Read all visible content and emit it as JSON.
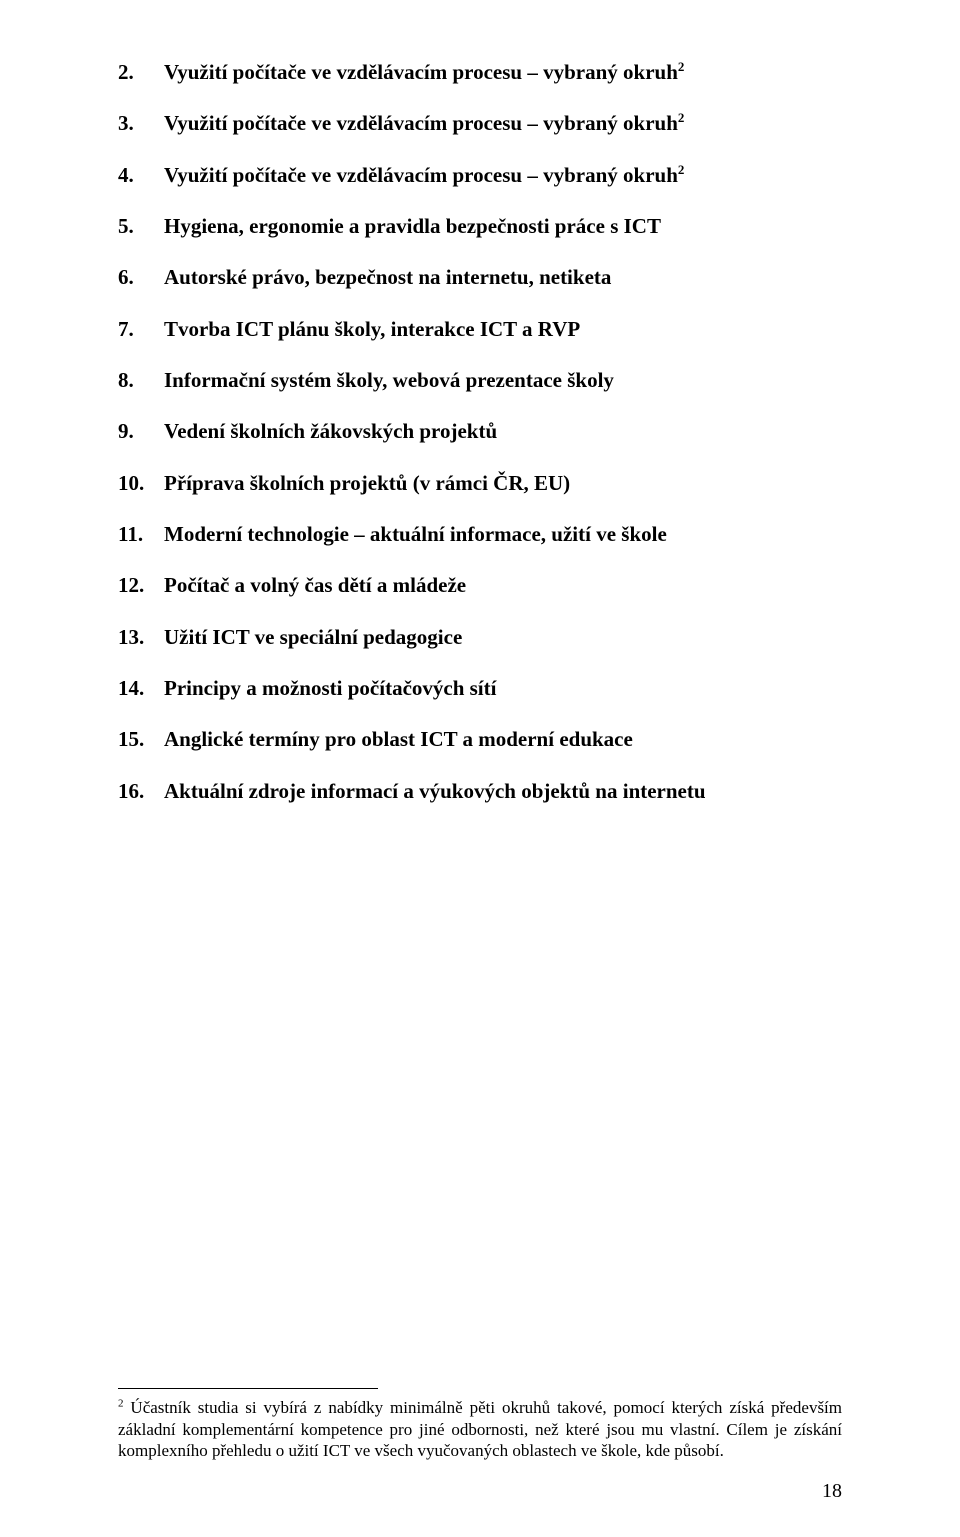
{
  "list": {
    "start": 2,
    "items": [
      {
        "text": "Využití počítače ve vzdělávacím procesu – vybraný okruh",
        "sup": "2"
      },
      {
        "text": "Využití počítače ve vzdělávacím procesu – vybraný okruh",
        "sup": "2"
      },
      {
        "text": "Využití počítače ve vzdělávacím procesu – vybraný okruh",
        "sup": "2"
      },
      {
        "text": "Hygiena, ergonomie a pravidla bezpečnosti práce s ICT",
        "sup": ""
      },
      {
        "text": "Autorské právo, bezpečnost na internetu, netiketa",
        "sup": ""
      },
      {
        "text": "Tvorba ICT plánu školy, interakce ICT a RVP",
        "sup": ""
      },
      {
        "text": "Informační systém školy, webová prezentace školy",
        "sup": ""
      },
      {
        "text": "Vedení školních žákovských projektů",
        "sup": ""
      },
      {
        "text": "Příprava školních projektů (v rámci ČR, EU)",
        "sup": ""
      },
      {
        "text": "Moderní technologie – aktuální informace, užití ve škole",
        "sup": ""
      },
      {
        "text": "Počítač a volný čas dětí a mládeže",
        "sup": ""
      },
      {
        "text": "Užití ICT ve speciální pedagogice",
        "sup": ""
      },
      {
        "text": "Principy a možnosti počítačových sítí",
        "sup": ""
      },
      {
        "text": "Anglické termíny pro oblast ICT a moderní edukace",
        "sup": ""
      },
      {
        "text": "Aktuální zdroje informací a výukových objektů na internetu",
        "sup": ""
      }
    ]
  },
  "footnote": {
    "num": "2",
    "text": "Účastník studia si vybírá z nabídky minimálně pěti okruhů takové, pomocí kterých získá především základní komplementární kompetence pro jiné odbornosti, než které jsou mu vlastní. Cílem je získání komplexního přehledu o užití ICT ve všech vyučovaných oblastech ve škole, kde působí."
  },
  "page_number": "18"
}
